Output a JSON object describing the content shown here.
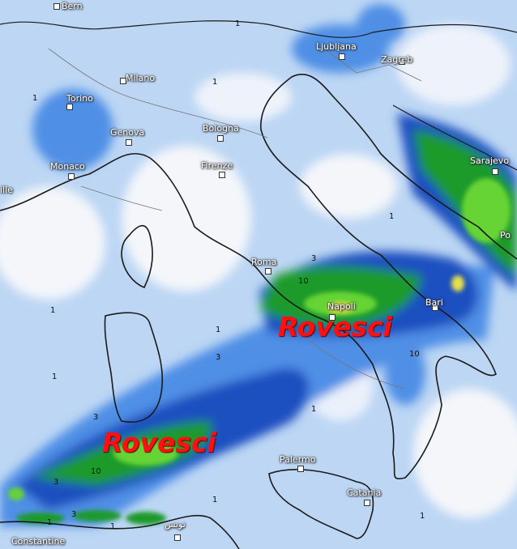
{
  "map": {
    "cities": [
      {
        "name": "Bern"
      },
      {
        "name": "Milano"
      },
      {
        "name": "Torino"
      },
      {
        "name": "Genova"
      },
      {
        "name": "Bologna"
      },
      {
        "name": "Monaco"
      },
      {
        "name": "Firenze"
      },
      {
        "name": "Ljubljana"
      },
      {
        "name": "Zagreb"
      },
      {
        "name": "Sarajevo"
      },
      {
        "name": "Roma"
      },
      {
        "name": "Napoli"
      },
      {
        "name": "Bari"
      },
      {
        "name": "Po"
      },
      {
        "name": "Palermo"
      },
      {
        "name": "Catania"
      },
      {
        "name": "Constantine"
      },
      {
        "name": "تونس"
      },
      {
        "name": "ille"
      }
    ],
    "overlay_labels": [
      "Rovesci",
      "Rovesci"
    ],
    "contour_labels": [
      "1",
      "1",
      "1",
      "1",
      "3",
      "10",
      "10",
      "1",
      "1",
      "3",
      "3",
      "10",
      "1",
      "3",
      "1",
      "1",
      "1",
      "3",
      "1",
      "1"
    ],
    "colors": {
      "light": "#bcd6f4",
      "blue": "#4f8fe6",
      "dark_blue": "#1f4fc0",
      "green": "#1f9a2c",
      "light_green": "#66d435",
      "yellow": "#e8e24a",
      "label": "#ff1010"
    }
  }
}
